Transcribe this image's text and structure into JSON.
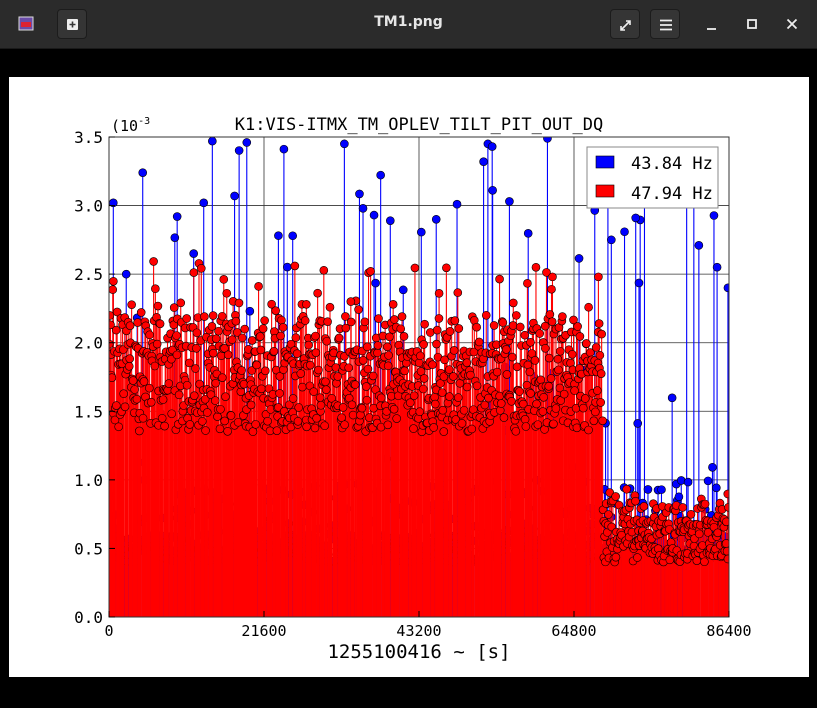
{
  "window": {
    "title": "TM1.png",
    "app_icon": "image-viewer-icon",
    "buttons": [
      "new-tab-icon",
      "fullscreen-icon",
      "menu-icon",
      "minimize-icon",
      "maximize-icon",
      "close-icon"
    ]
  },
  "chart_data": {
    "type": "stem",
    "title": "K1:VIS-ITMX_TM_OPLEV_TILT_PIT_OUT_DQ",
    "xlabel": "1255100416 ~ [s]",
    "ylabel": "",
    "y_multiplier": "(10-3",
    "y_multiplier_base": "(10",
    "y_multiplier_exp": "-3",
    "xlim": [
      0,
      86400
    ],
    "ylim": [
      0,
      3.5
    ],
    "x_ticks": [
      "0",
      "21600",
      "43200",
      "64800",
      "86400"
    ],
    "y_ticks": [
      "0.0",
      "0.5",
      "1.0",
      "1.5",
      "2.0",
      "2.5",
      "3.0",
      "3.5"
    ],
    "grid": true,
    "legend": "top-right",
    "series": [
      {
        "name": "43.84 Hz",
        "color": "#0000ff",
        "data_gap": [],
        "segments": [
          {
            "from": 0,
            "to": 86400,
            "baseline": 0.5,
            "spread": 0.1,
            "upper_min": 0.9,
            "upper_max": 3.5
          }
        ],
        "peaks": [
          {
            "x": 600,
            "y": 3.02
          },
          {
            "x": 2400,
            "y": 2.5
          },
          {
            "x": 4700,
            "y": 3.24
          },
          {
            "x": 9500,
            "y": 2.92
          },
          {
            "x": 11800,
            "y": 2.65
          },
          {
            "x": 13200,
            "y": 3.02
          },
          {
            "x": 14400,
            "y": 3.47
          },
          {
            "x": 17500,
            "y": 3.07
          },
          {
            "x": 19200,
            "y": 3.46
          },
          {
            "x": 25600,
            "y": 2.78
          },
          {
            "x": 32800,
            "y": 3.45
          },
          {
            "x": 35400,
            "y": 2.98
          },
          {
            "x": 39200,
            "y": 2.89
          },
          {
            "x": 45600,
            "y": 2.9
          },
          {
            "x": 48500,
            "y": 3.01
          },
          {
            "x": 52200,
            "y": 3.32
          },
          {
            "x": 52800,
            "y": 3.45
          },
          {
            "x": 53400,
            "y": 3.43
          },
          {
            "x": 55800,
            "y": 3.03
          },
          {
            "x": 61100,
            "y": 3.49
          },
          {
            "x": 70000,
            "y": 2.75
          },
          {
            "x": 73400,
            "y": 2.91
          },
          {
            "x": 80500,
            "y": 3.16
          },
          {
            "x": 81500,
            "y": 3.15
          },
          {
            "x": 82200,
            "y": 2.71
          }
        ]
      },
      {
        "name": "47.94 Hz",
        "color": "#ff0000",
        "data_gap": [],
        "segments": [
          {
            "from": 0,
            "to": 68800,
            "baseline": 1.65,
            "spread": 0.3,
            "upper_min": 1.9,
            "upper_max": 2.6
          },
          {
            "from": 68800,
            "to": 86400,
            "baseline": 0.55,
            "spread": 0.15,
            "upper_min": 0.7,
            "upper_max": 0.95
          }
        ],
        "peaks": [
          {
            "x": 25900,
            "y": 2.56
          },
          {
            "x": 27500,
            "y": 2.28
          },
          {
            "x": 33700,
            "y": 2.3
          },
          {
            "x": 39600,
            "y": 2.28
          },
          {
            "x": 46000,
            "y": 2.36
          },
          {
            "x": 59500,
            "y": 2.55
          },
          {
            "x": 61800,
            "y": 2.48
          },
          {
            "x": 68200,
            "y": 2.48
          }
        ]
      }
    ]
  }
}
